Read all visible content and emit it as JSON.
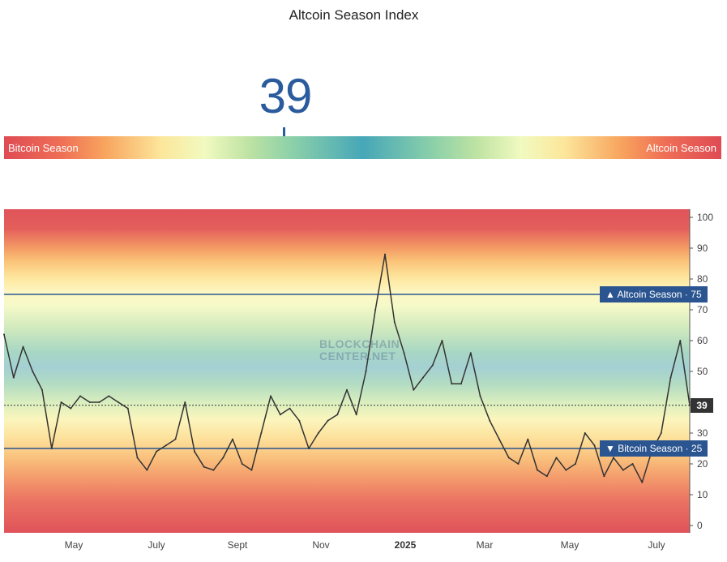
{
  "title": "Altcoin Season Index",
  "current_value": "39",
  "gauge": {
    "left_label": "Bitcoin Season",
    "right_label": "Altcoin Season",
    "value_fraction": 0.39
  },
  "watermark": {
    "line1": "BLOCKCHAIN",
    "line2": "CENTER.NET"
  },
  "markers": {
    "altcoin_label": "▲ Altcoin Season · 75",
    "bitcoin_label": "▼ Bitcoin Season · 25",
    "current_tag": "39"
  },
  "colors": {
    "accent": "#2a5590",
    "line": "#333333",
    "current_tag_bg": "#333333"
  },
  "chart_data": {
    "type": "line",
    "title": "Altcoin Season Index",
    "ylim": [
      0,
      100
    ],
    "y_ticks": [
      "0",
      "10",
      "20",
      "30",
      "40",
      "50",
      "60",
      "70",
      "80",
      "90",
      "100"
    ],
    "x_tick_labels": [
      "May",
      "July",
      "Sept",
      "Nov",
      "2025",
      "Mar",
      "May",
      "July"
    ],
    "reference_lines": [
      {
        "label": "Altcoin Season",
        "value": 75
      },
      {
        "label": "Bitcoin Season",
        "value": 25
      }
    ],
    "current_value": 39,
    "x_range": [
      0,
      64
    ],
    "values": [
      62,
      48,
      58,
      50,
      44,
      25,
      40,
      38,
      42,
      40,
      40,
      42,
      40,
      38,
      22,
      18,
      24,
      26,
      28,
      40,
      24,
      19,
      18,
      22,
      28,
      20,
      18,
      30,
      42,
      36,
      38,
      34,
      25,
      30,
      34,
      36,
      44,
      36,
      50,
      70,
      88,
      66,
      56,
      44,
      48,
      52,
      60,
      46,
      46,
      56,
      42,
      34,
      28,
      22,
      20,
      28,
      18,
      16,
      22,
      18,
      20,
      30,
      26,
      16,
      22,
      18,
      20,
      14,
      24,
      30,
      48,
      60,
      39
    ]
  }
}
